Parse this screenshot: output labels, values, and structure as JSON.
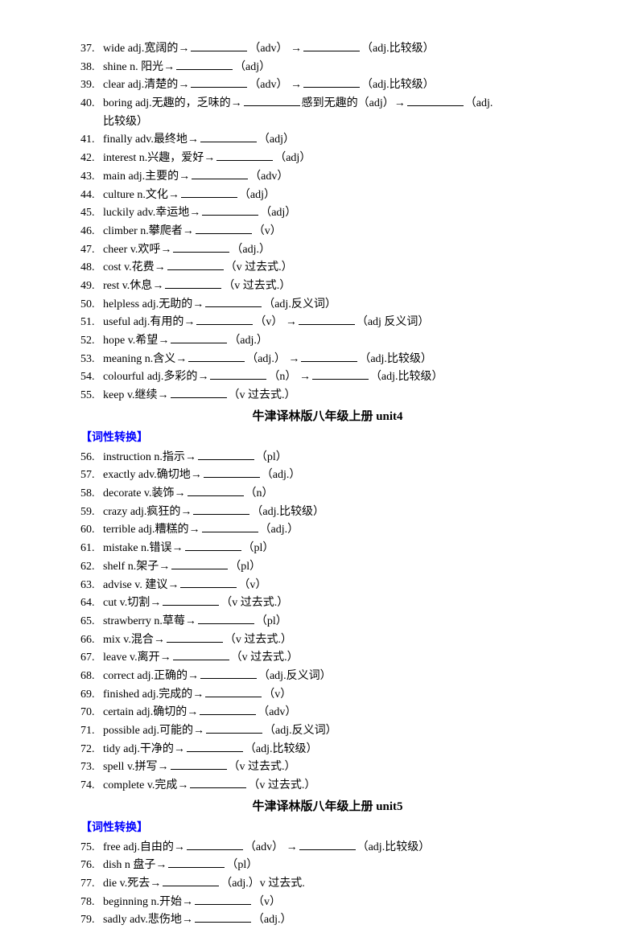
{
  "section1": [
    {
      "n": "37.",
      "w": "wide",
      "p": "adj.宽阔的",
      "t": [
        {
          "label": "（adv）"
        },
        {
          "label": "（adj.比较级）"
        }
      ]
    },
    {
      "n": "38.",
      "w": "shine",
      "p": "n. 阳光",
      "t": [
        {
          "label": "（adj）"
        }
      ]
    },
    {
      "n": "39.",
      "w": "clear",
      "p": "adj.清楚的",
      "t": [
        {
          "label": "（adv）"
        },
        {
          "label": "（adj.比较级）"
        }
      ]
    },
    {
      "n": "40.",
      "w": "boring",
      "p": "adj.无趣的，乏味的",
      "mid": "感到无趣的（adj）",
      "t": [
        {
          "label": "（adj."
        }
      ],
      "cont": "比较级）"
    },
    {
      "n": "41.",
      "w": "finally",
      "p": "adv.最终地",
      "t": [
        {
          "label": "（adj）"
        }
      ]
    },
    {
      "n": "42.",
      "w": "interest",
      "p": "n.兴趣，爱好",
      "t": [
        {
          "label": "（adj）"
        }
      ]
    },
    {
      "n": "43.",
      "w": "main",
      "p": "adj.主要的",
      "t": [
        {
          "label": "（adv）"
        }
      ]
    },
    {
      "n": "44.",
      "w": "culture",
      "p": "n.文化",
      "t": [
        {
          "label": "（adj）"
        }
      ]
    },
    {
      "n": "45.",
      "w": "luckily",
      "p": "adv.幸运地",
      "t": [
        {
          "label": "（adj）"
        }
      ]
    },
    {
      "n": "46.",
      "w": "climber",
      "p": "n.攀爬者",
      "t": [
        {
          "label": "（v）"
        }
      ]
    },
    {
      "n": "47.",
      "w": "cheer",
      "p": "v.欢呼",
      "t": [
        {
          "label": "（adj.）"
        }
      ]
    },
    {
      "n": "48.",
      "w": "cost",
      "p": "v.花费",
      "t": [
        {
          "label": "（v 过去式.）"
        }
      ]
    },
    {
      "n": "49.",
      "w": "rest",
      "p": "v.休息",
      "t": [
        {
          "label": "（v 过去式.）"
        }
      ]
    },
    {
      "n": "50.",
      "w": "helpless",
      "p": "adj.无助的",
      "t": [
        {
          "label": "（adj.反义词）"
        }
      ]
    },
    {
      "n": "51.",
      "w": "useful",
      "p": "adj.有用的",
      "t": [
        {
          "label": "（v）"
        },
        {
          "label": "（adj 反义词）"
        }
      ]
    },
    {
      "n": "52.",
      "w": "hope",
      "p": "v.希望",
      "t": [
        {
          "label": "（adj.）"
        }
      ]
    },
    {
      "n": "53.",
      "w": "meaning",
      "p": "n.含义",
      "t": [
        {
          "label": "（adj.）"
        },
        {
          "label": "（adj.比较级）"
        }
      ]
    },
    {
      "n": "54.",
      "w": "colourful",
      "p": "adj.多彩的",
      "t": [
        {
          "label": "（n）"
        },
        {
          "label": "（adj.比较级）"
        }
      ]
    },
    {
      "n": "55.",
      "w": "keep",
      "p": "v.继续",
      "t": [
        {
          "label": "（v 过去式.）"
        }
      ]
    }
  ],
  "title1": "牛津译林版八年级上册 unit4",
  "sectionLabel": "【词性转换】",
  "section2": [
    {
      "n": "56.",
      "w": "instruction",
      "p": "n.指示",
      "t": [
        {
          "label": "（pl）"
        }
      ]
    },
    {
      "n": "57.",
      "w": "exactly",
      "p": "adv.确切地",
      "t": [
        {
          "label": "（adj.）"
        }
      ]
    },
    {
      "n": "58.",
      "w": "decorate",
      "p": "v.装饰",
      "t": [
        {
          "label": "（n）"
        }
      ]
    },
    {
      "n": "59.",
      "w": "crazy",
      "p": "adj.疯狂的",
      "t": [
        {
          "label": "（adj.比较级）"
        }
      ]
    },
    {
      "n": "60.",
      "w": "terrible",
      "p": "adj.糟糕的",
      "t": [
        {
          "label": "（adj.）"
        }
      ]
    },
    {
      "n": "61.",
      "w": "mistake",
      "p": "n.错误",
      "t": [
        {
          "label": "（pl）"
        }
      ]
    },
    {
      "n": "62.",
      "w": "shelf",
      "p": "n.架子",
      "t": [
        {
          "label": "（pl）"
        }
      ]
    },
    {
      "n": "63.",
      "w": "advise",
      "p": "v. 建议",
      "t": [
        {
          "label": "（v）"
        }
      ]
    },
    {
      "n": "64.",
      "w": "cut",
      "p": "v.切割",
      "t": [
        {
          "label": "（v 过去式.）"
        }
      ]
    },
    {
      "n": "65.",
      "w": "strawberry",
      "p": "n.草莓",
      "t": [
        {
          "label": "（pl）"
        }
      ]
    },
    {
      "n": "66.",
      "w": "mix",
      "p": "v.混合",
      "t": [
        {
          "label": "（v 过去式.）"
        }
      ]
    },
    {
      "n": "67.",
      "w": "leave",
      "p": "v.离开",
      "t": [
        {
          "label": "（v 过去式.）"
        }
      ]
    },
    {
      "n": "68.",
      "w": "correct",
      "p": "adj.正确的",
      "t": [
        {
          "label": "（adj.反义词）"
        }
      ]
    },
    {
      "n": "69.",
      "w": "finished",
      "p": "adj.完成的",
      "t": [
        {
          "label": "（v）"
        }
      ]
    },
    {
      "n": "70.",
      "w": "certain",
      "p": "adj.确切的",
      "t": [
        {
          "label": "（adv）"
        }
      ]
    },
    {
      "n": "71.",
      "w": "possible",
      "p": "adj.可能的",
      "t": [
        {
          "label": "（adj.反义词）"
        }
      ]
    },
    {
      "n": "72.",
      "w": "tidy",
      "p": "adj.干净的",
      "t": [
        {
          "label": "（adj.比较级）"
        }
      ]
    },
    {
      "n": "73.",
      "w": "spell",
      "p": "v.拼写",
      "t": [
        {
          "label": "（v 过去式.）"
        }
      ]
    },
    {
      "n": "74.",
      "w": "complete",
      "p": "v.完成",
      "t": [
        {
          "label": "（v 过去式.）"
        }
      ]
    }
  ],
  "title2": "牛津译林版八年级上册  unit5",
  "section3": [
    {
      "n": "75.",
      "w": "free",
      "p": "adj.自由的",
      "t": [
        {
          "label": "（adv）"
        },
        {
          "label": "（adj.比较级）"
        }
      ]
    },
    {
      "n": "76.",
      "w": "dish",
      "p": "n 盘子",
      "t": [
        {
          "label": "（pl）"
        }
      ]
    },
    {
      "n": "77.",
      "w": "die",
      "p": "v.死去",
      "t": [
        {
          "label": "（adj.）v 过去式."
        }
      ]
    },
    {
      "n": "78.",
      "w": "beginning",
      "p": "n.开始",
      "t": [
        {
          "label": "（v）"
        }
      ]
    },
    {
      "n": "79.",
      "w": "sadly",
      "p": "adv.悲伤地",
      "t": [
        {
          "label": "（adj.）"
        }
      ]
    }
  ]
}
